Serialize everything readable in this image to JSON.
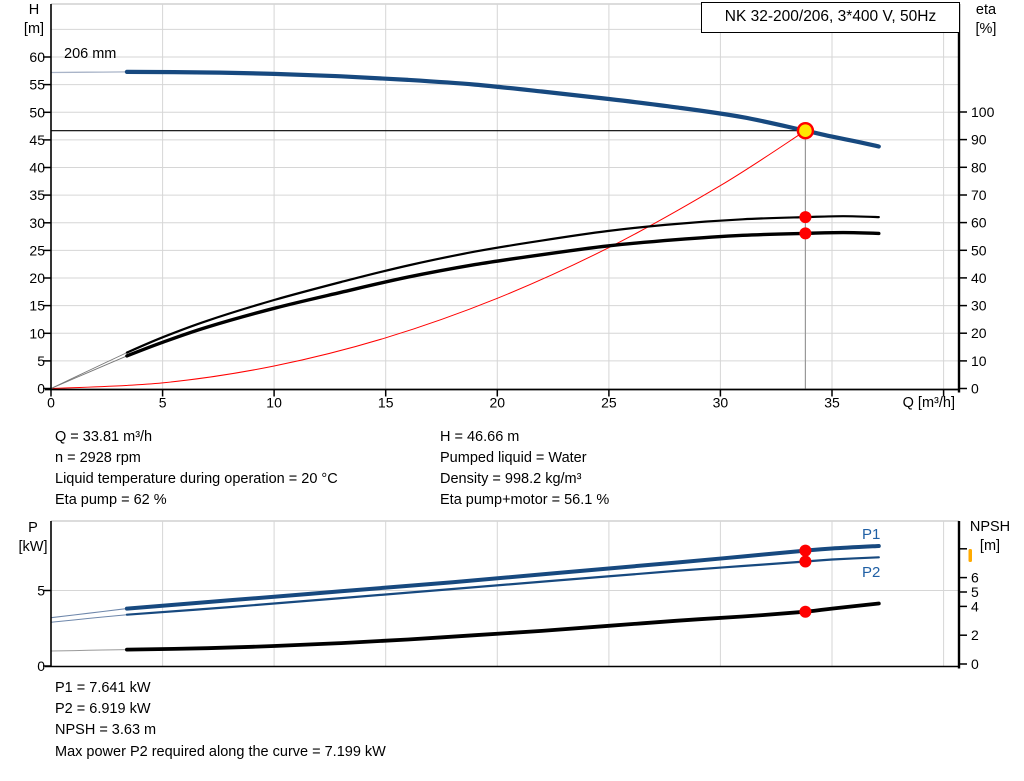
{
  "window": {
    "background": "#ffffff"
  },
  "title_box": "NK 32-200/206, 3*400 V, 50Hz",
  "colors": {
    "curve_blue": "#17497f",
    "curve_blue_thin": "#a9b4c8",
    "label_blue": "#2060a5",
    "red": "#ff0000",
    "yellow": "#ffe600",
    "black": "#000000",
    "grid": "#d6d6d6",
    "frame_light": "#b8b8b8",
    "duty_line_gray": "#999999",
    "thin_gray": "#aaaaaa",
    "orange_marker": "#ffaa00"
  },
  "info": {
    "top_left": [
      "Q = 33.81 m³/h",
      "n = 2928 rpm",
      "Liquid temperature during operation = 20 °C",
      "Eta pump = 62 %"
    ],
    "top_right": [
      "H = 46.66 m",
      "Pumped liquid = Water",
      "Density = 998.2 kg/m³",
      "Eta pump+motor = 56.1 %"
    ],
    "bottom": [
      "P1 = 7.641 kW",
      "P2 = 6.919 kW",
      "NPSH = 3.63 m",
      "Max power P2 required along the curve = 7.199 kW"
    ]
  },
  "chart_data": [
    {
      "id": "qh-eta",
      "type": "line",
      "title": "NK 32-200/206, 3*400 V, 50Hz",
      "annotation": "206 mm",
      "x_axis": {
        "label": "Q [m³/h]",
        "min": 0,
        "max": 40.7,
        "grid_step": 5,
        "tick_values": [
          0,
          5,
          10,
          15,
          20,
          25,
          30,
          35,
          40
        ],
        "labeled_ticks": [
          0,
          5,
          10,
          15,
          20,
          25,
          30,
          35
        ]
      },
      "y_left": {
        "name": "H",
        "unit": "[m]",
        "min": 0,
        "max": 69.5,
        "tick_values": [
          0,
          5,
          10,
          15,
          20,
          25,
          30,
          35,
          40,
          45,
          50,
          55,
          60
        ]
      },
      "y_right": {
        "name": "eta",
        "unit": "[%]",
        "min": 0,
        "max": 100,
        "tick_values": [
          0,
          10,
          20,
          30,
          40,
          50,
          60,
          70,
          80,
          90,
          100
        ]
      },
      "series": [
        {
          "name": "H (206 mm)",
          "axis": "left",
          "color": "#17497f",
          "width": 4.2,
          "thin_color": "#a9b4c8",
          "thin_width": 1.3,
          "thin_points": [
            [
              0,
              57.2
            ],
            [
              1.7,
              57.25
            ],
            [
              3.4,
              57.3
            ]
          ],
          "points": [
            [
              3.4,
              57.3
            ],
            [
              7,
              57.2
            ],
            [
              10,
              56.95
            ],
            [
              13,
              56.5
            ],
            [
              16,
              55.85
            ],
            [
              19,
              55.0
            ],
            [
              22,
              53.75
            ],
            [
              25,
              52.4
            ],
            [
              28,
              50.9
            ],
            [
              31,
              49.1
            ],
            [
              33.81,
              46.66
            ],
            [
              35,
              45.6
            ],
            [
              36.2,
              44.6
            ],
            [
              37.1,
              43.8
            ]
          ]
        },
        {
          "name": "Eta pump",
          "axis": "right",
          "color": "#000000",
          "width": 2.2,
          "thin_color": "#777777",
          "thin_width": 0.9,
          "thin_points": [
            [
              0,
              0
            ],
            [
              1.7,
              6.5
            ],
            [
              3.4,
              13
            ]
          ],
          "points": [
            [
              3.4,
              13
            ],
            [
              5,
              18.5
            ],
            [
              7,
              24.5
            ],
            [
              10,
              32
            ],
            [
              13,
              38.5
            ],
            [
              16,
              44.5
            ],
            [
              19,
              49.5
            ],
            [
              22,
              53.5
            ],
            [
              25,
              57
            ],
            [
              28,
              59.5
            ],
            [
              31,
              61.2
            ],
            [
              33.81,
              62
            ],
            [
              35.5,
              62.3
            ],
            [
              37.1,
              62
            ]
          ]
        },
        {
          "name": "Eta pump+motor",
          "axis": "right",
          "color": "#000000",
          "width": 3.4,
          "thin_color": "#777777",
          "thin_width": 0.9,
          "thin_points": [
            [
              0,
              0
            ],
            [
              1.7,
              5.9
            ],
            [
              3.4,
              11.8
            ]
          ],
          "points": [
            [
              3.4,
              11.8
            ],
            [
              5,
              16.7
            ],
            [
              7,
              22.2
            ],
            [
              10,
              29
            ],
            [
              13,
              34.8
            ],
            [
              16,
              40.3
            ],
            [
              19,
              44.8
            ],
            [
              22,
              48.4
            ],
            [
              25,
              51.6
            ],
            [
              28,
              53.8
            ],
            [
              31,
              55.4
            ],
            [
              33.81,
              56.1
            ],
            [
              35.5,
              56.4
            ],
            [
              37.1,
              56.1
            ]
          ]
        },
        {
          "name": "System curve",
          "axis": "left",
          "color": "#ff0000",
          "width": 1,
          "points": [
            [
              0,
              0
            ],
            [
              5,
              1.02
            ],
            [
              10,
              4.08
            ],
            [
              15,
              9.18
            ],
            [
              20,
              16.33
            ],
            [
              25,
              25.51
            ],
            [
              30,
              36.73
            ],
            [
              33.81,
              46.66
            ]
          ]
        }
      ],
      "duty_point": {
        "q": 33.81,
        "h": 46.66,
        "eta_pump": 62,
        "eta_pump_motor": 56.1
      }
    },
    {
      "id": "p-npsh",
      "type": "line",
      "x_axis": {
        "min": 0,
        "max": 40.7,
        "grid_step": 5
      },
      "y_left": {
        "name": "P",
        "unit": "[kW]",
        "min": 0,
        "max": 9.6,
        "tick_values": [
          0,
          5
        ]
      },
      "y_right": {
        "name": "NPSH",
        "unit": "[m]",
        "min": 0,
        "max": 10,
        "tick_values": [
          0,
          2,
          4,
          5,
          6
        ],
        "unlabeled_tick_values": [
          8
        ]
      },
      "series": [
        {
          "name": "P1",
          "axis": "left",
          "color": "#17497f",
          "width": 4,
          "thin_color": "#6e87ab",
          "thin_width": 1.1,
          "thin_points": [
            [
              0,
              3.2
            ],
            [
              1.7,
              3.5
            ],
            [
              3.4,
              3.8
            ]
          ],
          "points": [
            [
              3.4,
              3.8
            ],
            [
              8,
              4.35
            ],
            [
              13,
              4.95
            ],
            [
              18,
              5.55
            ],
            [
              23,
              6.2
            ],
            [
              28,
              6.85
            ],
            [
              31,
              7.25
            ],
            [
              33.81,
              7.641
            ],
            [
              35,
              7.78
            ],
            [
              37.1,
              7.95
            ]
          ]
        },
        {
          "name": "P2",
          "axis": "left",
          "color": "#17497f",
          "width": 2.2,
          "thin_color": "#6e87ab",
          "thin_width": 1,
          "thin_points": [
            [
              0,
              2.9
            ],
            [
              1.7,
              3.15
            ],
            [
              3.4,
              3.4
            ]
          ],
          "points": [
            [
              3.4,
              3.4
            ],
            [
              8,
              3.9
            ],
            [
              13,
              4.5
            ],
            [
              18,
              5.1
            ],
            [
              23,
              5.7
            ],
            [
              28,
              6.3
            ],
            [
              31,
              6.62
            ],
            [
              33.81,
              6.919
            ],
            [
              35,
              7.05
            ],
            [
              37.1,
              7.2
            ]
          ]
        },
        {
          "name": "NPSH",
          "axis": "right",
          "color": "#000000",
          "width": 3.8,
          "thin_color": "#999999",
          "thin_width": 1,
          "thin_points": [
            [
              0,
              0.9
            ],
            [
              1.7,
              0.95
            ],
            [
              3.4,
              1.0
            ]
          ],
          "points": [
            [
              3.4,
              1.0
            ],
            [
              7,
              1.1
            ],
            [
              10,
              1.25
            ],
            [
              13,
              1.45
            ],
            [
              16,
              1.7
            ],
            [
              19,
              2.0
            ],
            [
              22,
              2.3
            ],
            [
              25,
              2.65
            ],
            [
              28,
              3.0
            ],
            [
              31,
              3.3
            ],
            [
              33.81,
              3.63
            ],
            [
              35,
              3.85
            ],
            [
              37.1,
              4.2
            ]
          ]
        }
      ],
      "duty_point": {
        "q": 33.81,
        "p1": 7.641,
        "p2": 6.919,
        "npsh": 3.63
      }
    }
  ]
}
